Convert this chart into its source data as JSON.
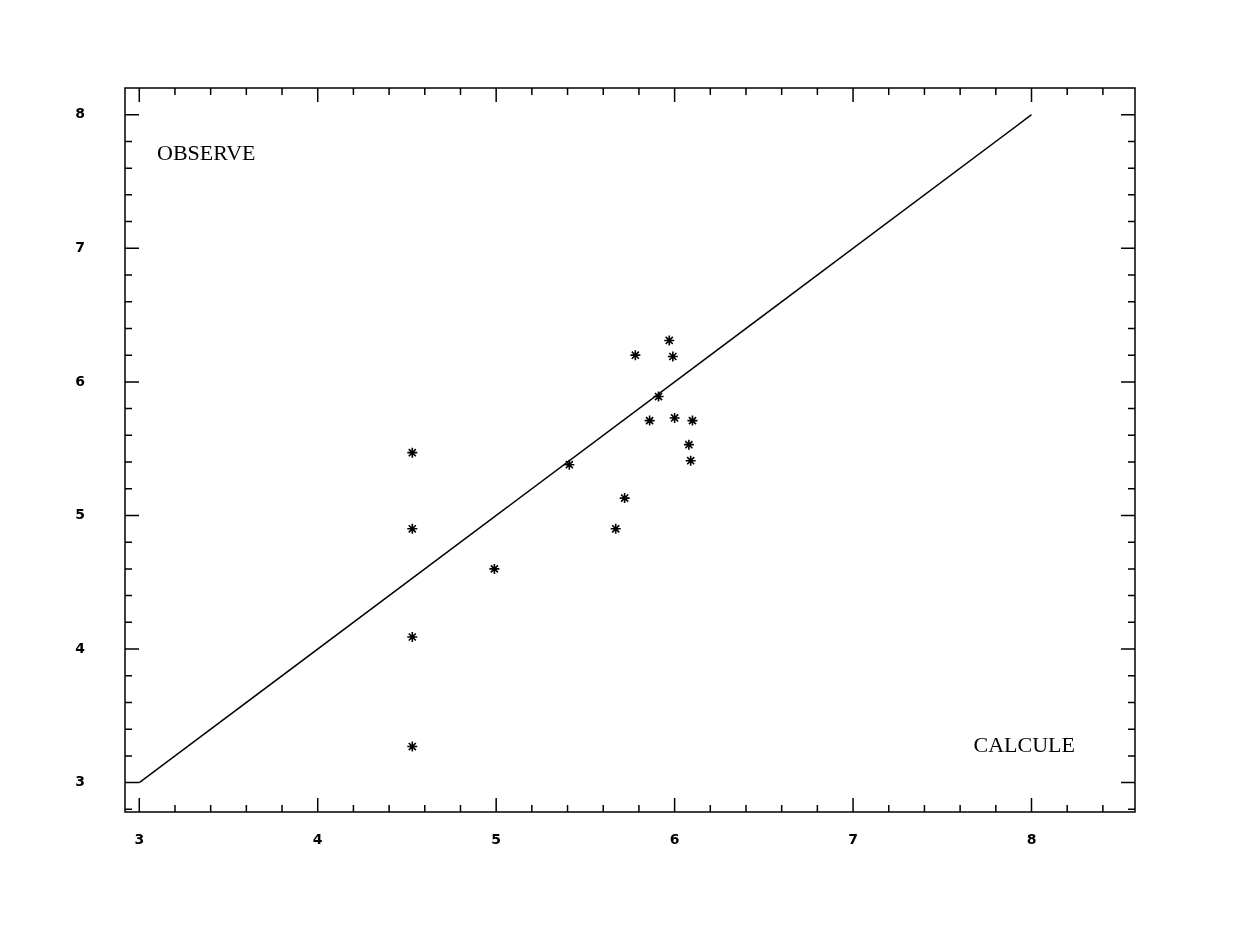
{
  "chart_data": {
    "type": "scatter",
    "xlabel": "CALCULE",
    "ylabel": "OBSERVE",
    "grid": false,
    "legend": false,
    "xlim": [
      2.92,
      8.58
    ],
    "ylim": [
      2.78,
      8.2
    ],
    "xticks": [
      3,
      {
        "value": 3.2,
        "label": null
      },
      {
        "value": 3.4,
        "label": null
      },
      {
        "value": 3.6,
        "label": null
      },
      {
        "value": 3.8,
        "label": null
      },
      4,
      {
        "value": 4.2,
        "label": null
      },
      {
        "value": 4.4,
        "label": null
      },
      {
        "value": 4.6,
        "label": null
      },
      {
        "value": 4.8,
        "label": null
      },
      5,
      {
        "value": 5.2,
        "label": null
      },
      {
        "value": 5.4,
        "label": null
      },
      {
        "value": 5.6,
        "label": null
      },
      {
        "value": 5.8,
        "label": null
      },
      6,
      {
        "value": 6.2,
        "label": null
      },
      {
        "value": 6.4,
        "label": null
      },
      {
        "value": 6.6,
        "label": null
      },
      {
        "value": 6.8,
        "label": null
      },
      7,
      {
        "value": 7.2,
        "label": null
      },
      {
        "value": 7.4,
        "label": null
      },
      {
        "value": 7.6,
        "label": null
      },
      {
        "value": 7.8,
        "label": null
      },
      8,
      {
        "value": 8.2,
        "label": null
      },
      {
        "value": 8.4,
        "label": null
      }
    ],
    "yticks": [
      {
        "value": 2.8,
        "label": null
      },
      3,
      {
        "value": 3.2,
        "label": null
      },
      {
        "value": 3.4,
        "label": null
      },
      {
        "value": 3.6,
        "label": null
      },
      {
        "value": 3.8,
        "label": null
      },
      4,
      {
        "value": 4.2,
        "label": null
      },
      {
        "value": 4.4,
        "label": null
      },
      {
        "value": 4.6,
        "label": null
      },
      {
        "value": 4.8,
        "label": null
      },
      5,
      {
        "value": 5.2,
        "label": null
      },
      {
        "value": 5.4,
        "label": null
      },
      {
        "value": 5.6,
        "label": null
      },
      {
        "value": 5.8,
        "label": null
      },
      6,
      {
        "value": 6.2,
        "label": null
      },
      {
        "value": 6.4,
        "label": null
      },
      {
        "value": 6.6,
        "label": null
      },
      {
        "value": 6.8,
        "label": null
      },
      7,
      {
        "value": 7.2,
        "label": null
      },
      {
        "value": 7.4,
        "label": null
      },
      {
        "value": 7.6,
        "label": null
      },
      {
        "value": 7.8,
        "label": null
      },
      8
    ],
    "series": [
      {
        "type": "scatter",
        "color": "#000000",
        "marker": "cross",
        "x": [
          4.53,
          4.53,
          4.53,
          4.53,
          4.99,
          5.41,
          5.67,
          5.72,
          5.78,
          5.86,
          5.91,
          5.97,
          5.99,
          6.0,
          6.08,
          6.09,
          6.1
        ],
        "values": [
          5.47,
          4.9,
          4.09,
          3.27,
          4.6,
          5.38,
          4.9,
          5.13,
          6.2,
          5.71,
          5.89,
          6.31,
          6.19,
          5.73,
          5.53,
          5.41,
          5.71
        ]
      },
      {
        "type": "line",
        "color": "#000000",
        "marker": "none",
        "x": [
          3,
          8
        ],
        "values": [
          3,
          8
        ]
      }
    ]
  }
}
